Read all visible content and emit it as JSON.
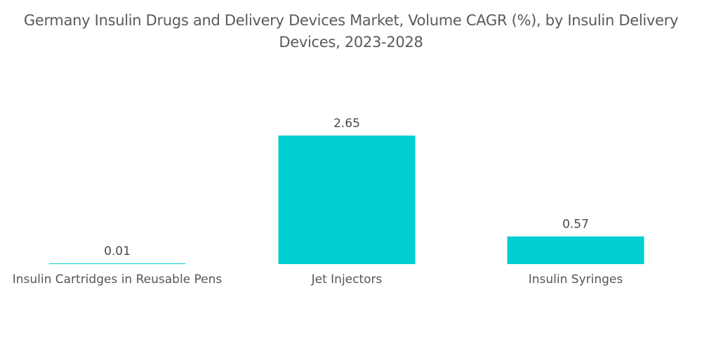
{
  "chart_data": {
    "type": "bar",
    "title": "Germany Insulin Drugs and Delivery Devices Market, Volume CAGR (%), by Insulin Delivery Devices, 2023-2028",
    "title_lines": [
      "Germany Insulin Drugs and Delivery Devices Market, Volume CAGR (%), by Insulin Delivery",
      "Devices, 2023-2028"
    ],
    "categories": [
      "Insulin Cartridges in Reusable Pens",
      "Jet Injectors",
      "Insulin Syringes"
    ],
    "values": [
      0.01,
      2.65,
      0.57
    ],
    "data_labels": [
      "0.01",
      "2.65",
      "0.57"
    ],
    "xlabel": "",
    "ylabel": "",
    "ylim": [
      0,
      2.65
    ],
    "grid": false,
    "legend": "none",
    "bar_color": "#00ced1"
  }
}
